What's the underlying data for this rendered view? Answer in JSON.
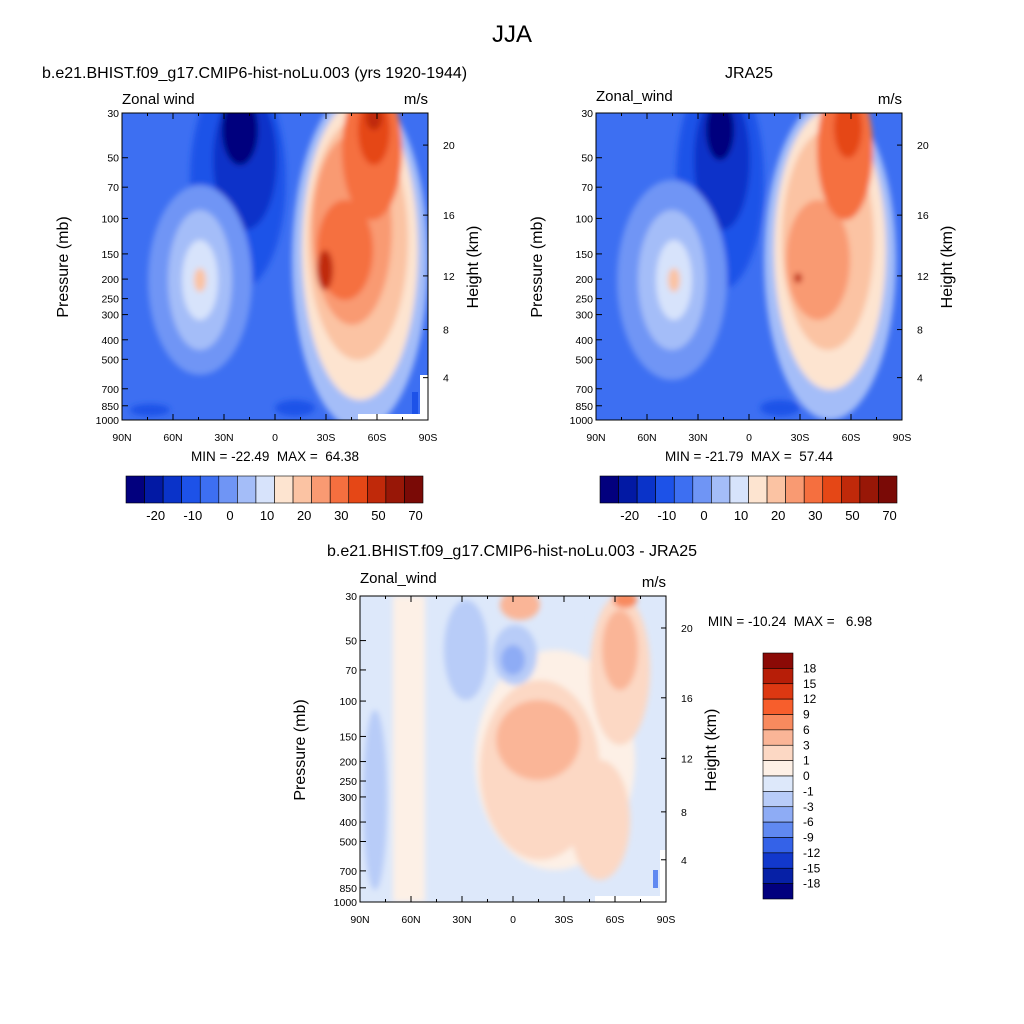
{
  "page_title": "JJA",
  "chart_data": [
    {
      "type": "filled-contour",
      "id": "model",
      "title": "b.e21.BHIST.f09_g17.CMIP6-hist-noLu.003 (yrs 1920-1944)",
      "left_label": "Zonal wind",
      "right_label": "m/s",
      "ylabel": "Pressure (mb)",
      "ylabel_right": "Height (km)",
      "x_ticks": [
        "90N",
        "60N",
        "30N",
        "0",
        "30S",
        "60S",
        "90S"
      ],
      "x_range": [
        90,
        -90
      ],
      "y_ticks": [
        30,
        50,
        70,
        100,
        150,
        200,
        250,
        300,
        400,
        500,
        700,
        850,
        1000
      ],
      "y_range": [
        30,
        1000
      ],
      "height_ticks": [
        20,
        16,
        12,
        8,
        4
      ],
      "stats": "MIN = -22.49  MAX =  64.38",
      "min": -22.49,
      "max": 64.38,
      "colorbar": {
        "orientation": "horizontal",
        "labels": [
          "-20",
          "-10",
          "0",
          "10",
          "20",
          "30",
          "50",
          "70"
        ],
        "colors": [
          "#02007e",
          "#0219a4",
          "#0a33c9",
          "#1d52e8",
          "#3d6ff2",
          "#6f95f5",
          "#a4bdf8",
          "#d7e3fb",
          "#fde4d0",
          "#fbc3a3",
          "#f99a72",
          "#f56f3f",
          "#e54716",
          "#c0290a",
          "#981707",
          "#7a0a06"
        ]
      },
      "features": {
        "easterly_core": "30 mb near 20N",
        "westerly_jet_core": "150-200 mb near 30S-40S",
        "stratospheric_jet": "30 mb near 60S",
        "westerly_max_nh": "200 mb near 45N"
      }
    },
    {
      "type": "filled-contour",
      "id": "obs",
      "title": "JRA25",
      "left_label": "Zonal_wind",
      "right_label": "m/s",
      "ylabel": "Pressure (mb)",
      "ylabel_right": "Height (km)",
      "x_ticks": [
        "90N",
        "60N",
        "30N",
        "0",
        "30S",
        "60S",
        "90S"
      ],
      "x_range": [
        90,
        -90
      ],
      "y_ticks": [
        30,
        50,
        70,
        100,
        150,
        200,
        250,
        300,
        400,
        500,
        700,
        850,
        1000
      ],
      "y_range": [
        30,
        1000
      ],
      "height_ticks": [
        20,
        16,
        12,
        8,
        4
      ],
      "stats": "MIN = -21.79  MAX =  57.44",
      "min": -21.79,
      "max": 57.44,
      "colorbar": {
        "orientation": "horizontal",
        "labels": [
          "-20",
          "-10",
          "0",
          "10",
          "20",
          "30",
          "50",
          "70"
        ],
        "colors": [
          "#02007e",
          "#0219a4",
          "#0a33c9",
          "#1d52e8",
          "#3d6ff2",
          "#6f95f5",
          "#a4bdf8",
          "#d7e3fb",
          "#fde4d0",
          "#fbc3a3",
          "#f99a72",
          "#f56f3f",
          "#e54716",
          "#c0290a",
          "#981707",
          "#7a0a06"
        ]
      }
    },
    {
      "type": "filled-contour",
      "id": "diff",
      "title": "b.e21.BHIST.f09_g17.CMIP6-hist-noLu.003 - JRA25",
      "left_label": "Zonal_wind",
      "right_label": "m/s",
      "ylabel": "Pressure (mb)",
      "ylabel_right": "Height (km)",
      "x_ticks": [
        "90N",
        "60N",
        "30N",
        "0",
        "30S",
        "60S",
        "90S"
      ],
      "x_range": [
        90,
        -90
      ],
      "y_ticks": [
        30,
        50,
        70,
        100,
        150,
        200,
        250,
        300,
        400,
        500,
        700,
        850,
        1000
      ],
      "y_range": [
        30,
        1000
      ],
      "height_ticks": [
        20,
        16,
        12,
        8,
        4
      ],
      "stats": "MIN = -10.24  MAX =   6.98",
      "min": -10.24,
      "max": 6.98,
      "colorbar": {
        "orientation": "vertical",
        "labels": [
          "18",
          "15",
          "12",
          "9",
          "6",
          "3",
          "1",
          "0",
          "-1",
          "-3",
          "-6",
          "-9",
          "-12",
          "-15",
          "-18"
        ],
        "colors": [
          "#8b0a06",
          "#b71e08",
          "#dd3812",
          "#f75e2c",
          "#f88a5e",
          "#fab597",
          "#fcd8c4",
          "#fdf0e6",
          "#dde8fa",
          "#b8ccf8",
          "#8eacf5",
          "#6089f1",
          "#3462e8",
          "#1238cc",
          "#0620a6",
          "#02007e"
        ]
      }
    }
  ]
}
